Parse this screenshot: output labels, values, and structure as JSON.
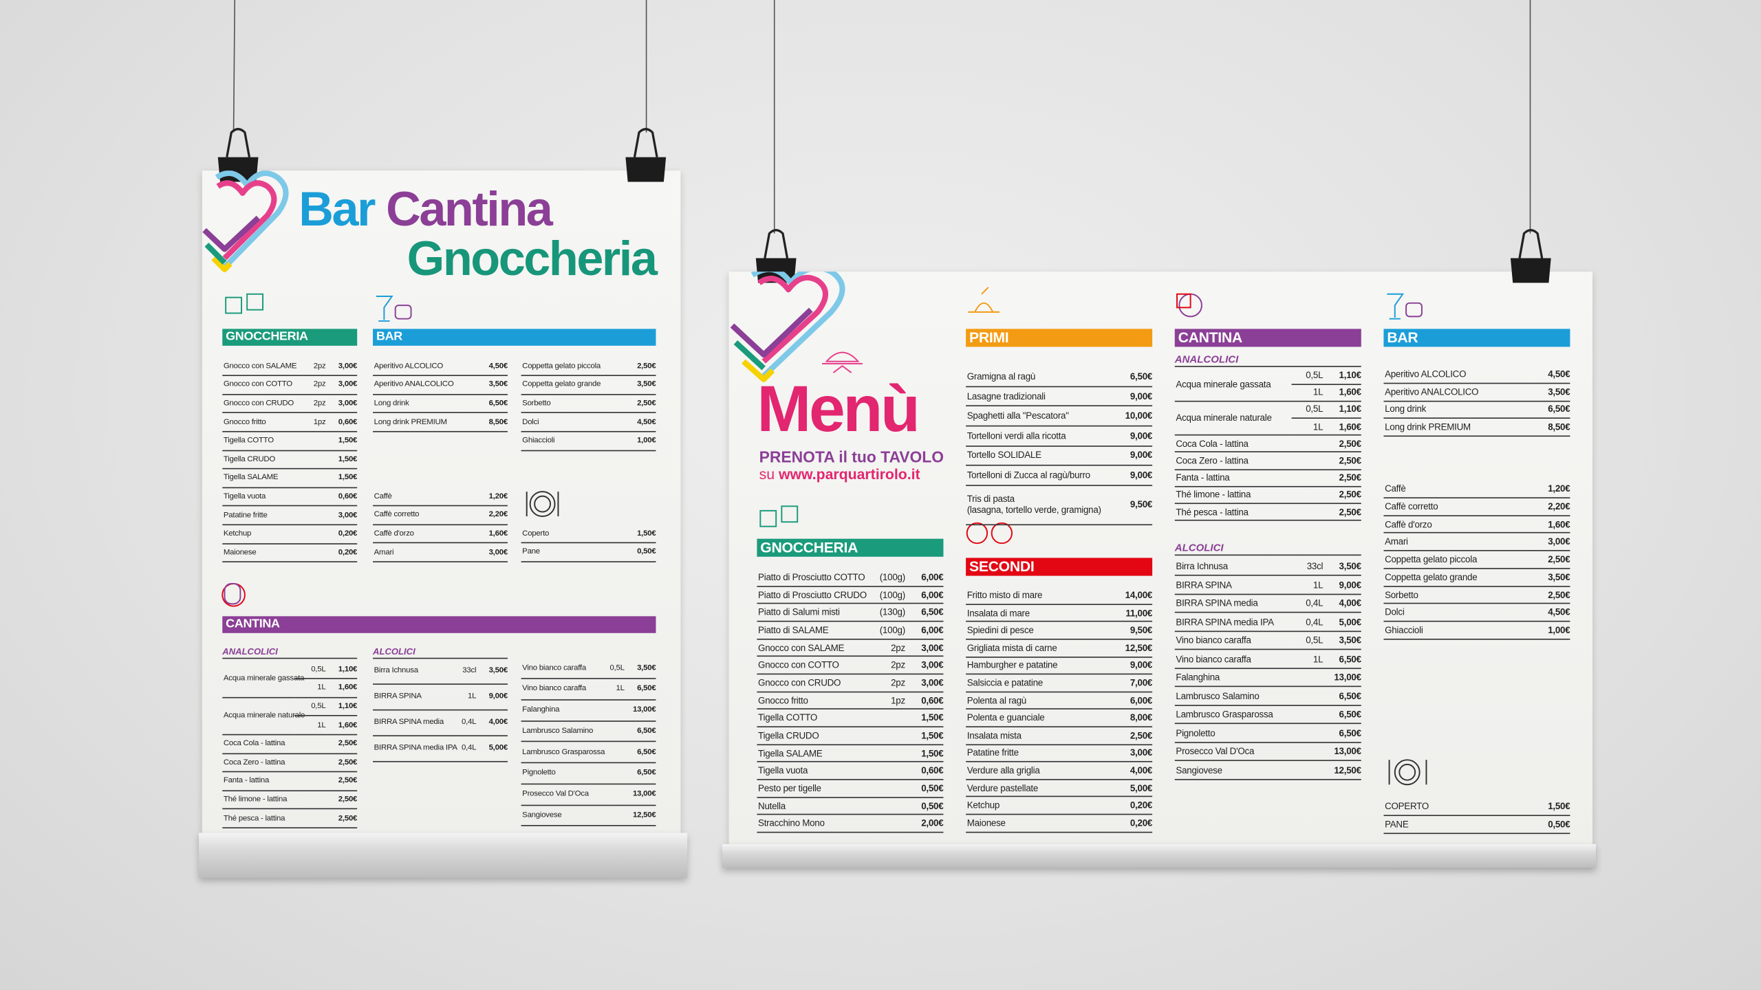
{
  "poster_left": {
    "title": [
      {
        "text": "Bar",
        "color": "#1b9ed8"
      },
      {
        "text": "Cantina",
        "color": "#8b3f96"
      },
      {
        "text": "Gnoccheria",
        "color": "#17967a"
      }
    ],
    "blocks": [
      {
        "heading": "GNOCCHERIA",
        "color": "#1a9b7b",
        "items": [
          {
            "name": "Gnocco con SALAME",
            "qty": "2pz",
            "price": "3,00€"
          },
          {
            "name": "Gnocco con COTTO",
            "qty": "2pz",
            "price": "3,00€"
          },
          {
            "name": "Gnocco con CRUDO",
            "qty": "2pz",
            "price": "3,00€"
          },
          {
            "name": "Gnocco fritto",
            "qty": "1pz",
            "price": "0,60€"
          },
          {
            "name": "Tigella COTTO",
            "price": "1,50€"
          },
          {
            "name": "Tigella CRUDO",
            "price": "1,50€"
          },
          {
            "name": "Tigella SALAME",
            "price": "1,50€"
          },
          {
            "name": "Tigella vuota",
            "price": "0,60€"
          },
          {
            "name": "Patatine fritte",
            "price": "3,00€"
          },
          {
            "name": "Ketchup",
            "price": "0,20€"
          },
          {
            "name": "Maionese",
            "price": "0,20€"
          }
        ]
      },
      {
        "heading": "BAR",
        "color": "#1b9ed8",
        "items": [
          {
            "name": "Aperitivo ALCOLICO",
            "price": "4,50€"
          },
          {
            "name": "Aperitivo ANALCOLICO",
            "price": "3,50€"
          },
          {
            "name": "Long drink",
            "price": "6,50€"
          },
          {
            "name": "Long drink PREMIUM",
            "price": "8,50€"
          }
        ]
      },
      {
        "items": [
          {
            "name": "Coppetta gelato piccola",
            "price": "2,50€"
          },
          {
            "name": "Coppetta gelato grande",
            "price": "3,50€"
          },
          {
            "name": "Sorbetto",
            "price": "2,50€"
          },
          {
            "name": "Dolci",
            "price": "4,50€"
          },
          {
            "name": "Ghiaccioli",
            "price": "1,00€"
          }
        ]
      },
      {
        "items": [
          {
            "name": "Caffè",
            "price": "1,20€"
          },
          {
            "name": "Caffè corretto",
            "price": "2,20€"
          },
          {
            "name": "Caffè d'orzo",
            "price": "1,60€"
          },
          {
            "name": "Amari",
            "price": "3,00€"
          }
        ]
      },
      {
        "items": [
          {
            "name": "Coperto",
            "price": "1,50€"
          },
          {
            "name": "Pane",
            "price": "0,50€"
          }
        ]
      },
      {
        "heading": "CANTINA",
        "color": "#8b3f96",
        "subheading": "ANALCOLICI",
        "items": [
          {
            "name": "Acqua minerale gassata",
            "options": [
              {
                "qty": "0,5L",
                "price": "1,10€"
              },
              {
                "qty": "1L",
                "price": "1,60€"
              }
            ]
          },
          {
            "name": "Acqua minerale naturale",
            "options": [
              {
                "qty": "0,5L",
                "price": "1,10€"
              },
              {
                "qty": "1L",
                "price": "1,60€"
              }
            ]
          },
          {
            "name": "Coca Cola - lattina",
            "price": "2,50€"
          },
          {
            "name": "Coca Zero - lattina",
            "price": "2,50€"
          },
          {
            "name": "Fanta - lattina",
            "price": "2,50€"
          },
          {
            "name": "Thé limone - lattina",
            "price": "2,50€"
          },
          {
            "name": "Thé pesca - lattina",
            "price": "2,50€"
          }
        ]
      },
      {
        "subheading": "ALCOLICI",
        "items": [
          {
            "name": "Birra Ichnusa",
            "qty": "33cl",
            "price": "3,50€"
          },
          {
            "name": "BIRRA SPINA",
            "qty": "1L",
            "price": "9,00€"
          },
          {
            "name": "BIRRA SPINA media",
            "qty": "0,4L",
            "price": "4,00€"
          },
          {
            "name": "BIRRA SPINA media IPA",
            "qty": "0,4L",
            "price": "5,00€"
          }
        ]
      },
      {
        "items": [
          {
            "name": "Vino bianco caraffa",
            "qty": "0,5L",
            "price": "3,50€"
          },
          {
            "name": "Vino bianco caraffa",
            "qty": "1L",
            "price": "6,50€"
          },
          {
            "name": "Falanghina",
            "price": "13,00€"
          },
          {
            "name": "Lambrusco Salamino",
            "price": "6,50€"
          },
          {
            "name": "Lambrusco Grasparossa",
            "price": "6,50€"
          },
          {
            "name": "Pignoletto",
            "price": "6,50€"
          },
          {
            "name": "Prosecco Val D'Oca",
            "price": "13,00€"
          },
          {
            "name": "Sangiovese",
            "price": "12,50€"
          }
        ]
      }
    ]
  },
  "poster_right": {
    "title": "Menù",
    "booking": "PRENOTA il tuo TAVOLO",
    "site_prefix": "su",
    "site": "www.parquartirolo.it",
    "blocks": [
      {
        "heading": "GNOCCHERIA",
        "color": "#1a9b7b",
        "items": [
          {
            "name": "Piatto di Prosciutto COTTO",
            "qty": "(100g)",
            "price": "6,00€"
          },
          {
            "name": "Piatto di Prosciutto CRUDO",
            "qty": "(100g)",
            "price": "6,00€"
          },
          {
            "name": "Piatto di Salumi misti",
            "qty": "(130g)",
            "price": "6,50€"
          },
          {
            "name": "Piatto di SALAME",
            "qty": "(100g)",
            "price": "6,00€"
          },
          {
            "name": "Gnocco con SALAME",
            "qty": "2pz",
            "price": "3,00€"
          },
          {
            "name": "Gnocco con COTTO",
            "qty": "2pz",
            "price": "3,00€"
          },
          {
            "name": "Gnocco con CRUDO",
            "qty": "2pz",
            "price": "3,00€"
          },
          {
            "name": "Gnocco fritto",
            "qty": "1pz",
            "price": "0,60€"
          },
          {
            "name": "Tigella COTTO",
            "price": "1,50€"
          },
          {
            "name": "Tigella CRUDO",
            "price": "1,50€"
          },
          {
            "name": "Tigella SALAME",
            "price": "1,50€"
          },
          {
            "name": "Tigella vuota",
            "price": "0,60€"
          },
          {
            "name": "Pesto per tigelle",
            "price": "0,50€"
          },
          {
            "name": "Nutella",
            "price": "0,50€"
          },
          {
            "name": "Stracchino Mono",
            "price": "2,00€"
          }
        ]
      },
      {
        "heading": "PRIMI",
        "color": "#f39b13",
        "items": [
          {
            "name": "Gramigna al ragù",
            "price": "6,50€"
          },
          {
            "name": "Lasagne tradizionali",
            "price": "9,00€"
          },
          {
            "name": "Spaghetti alla \"Pescatora\"",
            "price": "10,00€"
          },
          {
            "name": "Tortelloni verdi alla ricotta",
            "price": "9,00€"
          },
          {
            "name": "Tortello SOLIDALE",
            "price": "9,00€"
          },
          {
            "name": "Tortelloni di Zucca al ragù/burro",
            "price": "9,00€"
          },
          {
            "name": "Tris di pasta",
            "note": "(lasagna, tortello verde, gramigna)",
            "price": "9,50€"
          }
        ]
      },
      {
        "heading": "SECONDI",
        "color": "#e30613",
        "items": [
          {
            "name": "Fritto misto di mare",
            "price": "14,00€"
          },
          {
            "name": "Insalata di mare",
            "price": "11,00€"
          },
          {
            "name": "Spiedini di pesce",
            "price": "9,50€"
          },
          {
            "name": "Grigliata mista di carne",
            "price": "12,50€"
          },
          {
            "name": "Hamburgher e patatine",
            "price": "9,00€"
          },
          {
            "name": "Salsiccia e patatine",
            "price": "7,00€"
          },
          {
            "name": "Polenta al ragù",
            "price": "6,00€"
          },
          {
            "name": "Polenta e guanciale",
            "price": "8,00€"
          },
          {
            "name": "Insalata mista",
            "price": "2,50€"
          },
          {
            "name": "Patatine fritte",
            "price": "3,00€"
          },
          {
            "name": "Verdure alla griglia",
            "price": "4,00€"
          },
          {
            "name": "Verdure pastellate",
            "price": "5,00€"
          },
          {
            "name": "Ketchup",
            "price": "0,20€"
          },
          {
            "name": "Maionese",
            "price": "0,20€"
          }
        ]
      },
      {
        "heading": "CANTINA",
        "color": "#8b3f96",
        "subheading": "ANALCOLICI",
        "items": [
          {
            "name": "Acqua minerale gassata",
            "options": [
              {
                "qty": "0,5L",
                "price": "1,10€"
              },
              {
                "qty": "1L",
                "price": "1,60€"
              }
            ]
          },
          {
            "name": "Acqua minerale naturale",
            "options": [
              {
                "qty": "0,5L",
                "price": "1,10€"
              },
              {
                "qty": "1L",
                "price": "1,60€"
              }
            ]
          },
          {
            "name": "Coca Cola - lattina",
            "price": "2,50€"
          },
          {
            "name": "Coca Zero - lattina",
            "price": "2,50€"
          },
          {
            "name": "Fanta - lattina",
            "price": "2,50€"
          },
          {
            "name": "Thé limone - lattina",
            "price": "2,50€"
          },
          {
            "name": "Thé pesca - lattina",
            "price": "2,50€"
          }
        ]
      },
      {
        "subheading": "ALCOLICI",
        "items": [
          {
            "name": "Birra Ichnusa",
            "qty": "33cl",
            "price": "3,50€"
          },
          {
            "name": "BIRRA SPINA",
            "qty": "1L",
            "price": "9,00€"
          },
          {
            "name": "BIRRA SPINA media",
            "qty": "0,4L",
            "price": "4,00€"
          },
          {
            "name": "BIRRA SPINA media IPA",
            "qty": "0,4L",
            "price": "5,00€"
          },
          {
            "name": "Vino bianco caraffa",
            "qty": "0,5L",
            "price": "3,50€"
          },
          {
            "name": "Vino bianco caraffa",
            "qty": "1L",
            "price": "6,50€"
          },
          {
            "name": "Falanghina",
            "price": "13,00€"
          },
          {
            "name": "Lambrusco Salamino",
            "price": "6,50€"
          },
          {
            "name": "Lambrusco Grasparossa",
            "price": "6,50€"
          },
          {
            "name": "Pignoletto",
            "price": "6,50€"
          },
          {
            "name": "Prosecco Val D'Oca",
            "price": "13,00€"
          },
          {
            "name": "Sangiovese",
            "price": "12,50€"
          }
        ]
      },
      {
        "heading": "BAR",
        "color": "#1b9ed8",
        "items": [
          {
            "name": "Aperitivo ALCOLICO",
            "price": "4,50€"
          },
          {
            "name": "Aperitivo ANALCOLICO",
            "price": "3,50€"
          },
          {
            "name": "Long drink",
            "price": "6,50€"
          },
          {
            "name": "Long drink PREMIUM",
            "price": "8,50€"
          }
        ]
      },
      {
        "items": [
          {
            "name": "Caffè",
            "price": "1,20€"
          },
          {
            "name": "Caffè corretto",
            "price": "2,20€"
          },
          {
            "name": "Caffè d'orzo",
            "price": "1,60€"
          },
          {
            "name": "Amari",
            "price": "3,00€"
          },
          {
            "name": "Coppetta gelato piccola",
            "price": "2,50€"
          },
          {
            "name": "Coppetta gelato grande",
            "price": "3,50€"
          },
          {
            "name": "Sorbetto",
            "price": "2,50€"
          },
          {
            "name": "Dolci",
            "price": "4,50€"
          },
          {
            "name": "Ghiaccioli",
            "price": "1,00€"
          }
        ]
      },
      {
        "items": [
          {
            "name": "COPERTO",
            "price": "1,50€"
          },
          {
            "name": "PANE",
            "price": "0,50€"
          }
        ]
      }
    ]
  }
}
